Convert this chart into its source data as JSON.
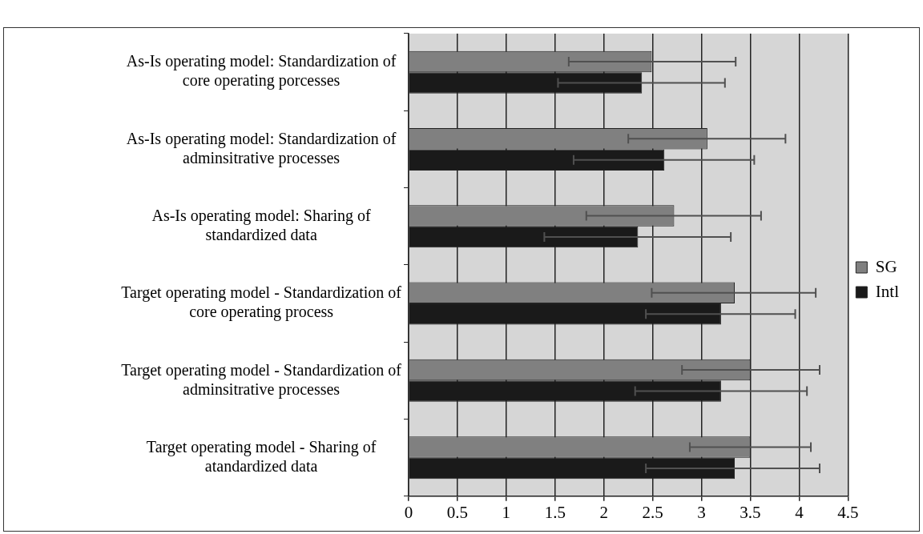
{
  "chart_data": {
    "type": "bar",
    "orientation": "horizontal",
    "categories": [
      "As-Is operating model: Standardization of core operating porcesses",
      "As-Is operating model: Standardization of adminsitrative processes",
      "As-Is operating model: Sharing of standardized data",
      "Target operating model - Standardization of core operating process",
      "Target operating model - Standardization of adminsitrative processes",
      "Target operating model - Sharing of atandardized data"
    ],
    "series": [
      {
        "name": "SG",
        "color": "#808080",
        "values": [
          2.49,
          3.06,
          2.72,
          3.34,
          3.5,
          3.5
        ],
        "errors": [
          [
            1.64,
            3.35
          ],
          [
            2.25,
            3.86
          ],
          [
            1.82,
            3.61
          ],
          [
            2.49,
            4.17
          ],
          [
            2.8,
            4.21
          ],
          [
            2.88,
            4.12
          ]
        ]
      },
      {
        "name": "Intl",
        "color": "#1a1a1a",
        "values": [
          2.39,
          2.62,
          2.35,
          3.2,
          3.2,
          3.34
        ],
        "errors": [
          [
            1.53,
            3.24
          ],
          [
            1.69,
            3.54
          ],
          [
            1.39,
            3.3
          ],
          [
            2.43,
            3.96
          ],
          [
            2.32,
            4.08
          ],
          [
            2.43,
            4.21
          ]
        ]
      }
    ],
    "xlim": [
      0,
      4.5
    ],
    "xticks": [
      0,
      0.5,
      1,
      1.5,
      2,
      2.5,
      3,
      3.5,
      4,
      4.5
    ],
    "grid": "x",
    "legend": "right"
  }
}
